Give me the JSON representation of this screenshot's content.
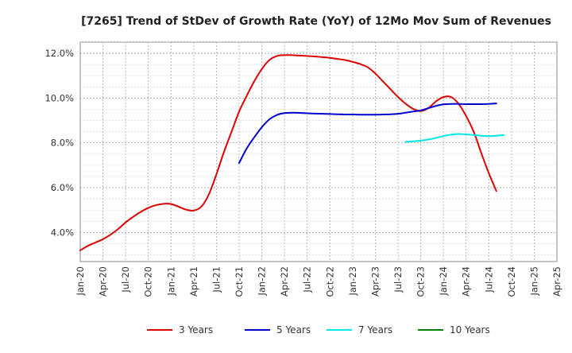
{
  "chart_data": {
    "type": "line",
    "title": "[7265]  Trend of StDev of Growth Rate (YoY) of 12Mo Mov Sum of Revenues",
    "xlabel": "",
    "ylabel": "",
    "x_tick_labels": [
      "Jan-20",
      "Apr-20",
      "Jul-20",
      "Oct-20",
      "Jan-21",
      "Apr-21",
      "Jul-21",
      "Oct-21",
      "Jan-22",
      "Apr-22",
      "Jul-22",
      "Oct-22",
      "Jan-23",
      "Apr-23",
      "Jul-23",
      "Oct-23",
      "Jan-24",
      "Apr-24",
      "Jul-24",
      "Oct-24",
      "Jan-25",
      "Apr-25"
    ],
    "y_tick_labels": [
      "4.0%",
      "6.0%",
      "8.0%",
      "10.0%",
      "12.0%"
    ],
    "y_tick_values": [
      4.0,
      6.0,
      8.0,
      10.0,
      12.0
    ],
    "ylim": [
      2.7,
      12.5
    ],
    "xlim_months": [
      0,
      63
    ],
    "grid": true,
    "legend_position": "bottom",
    "series": [
      {
        "name": "3 Years",
        "color": "#dd0000",
        "points": [
          [
            0,
            3.2
          ],
          [
            1,
            3.4
          ],
          [
            2,
            3.55
          ],
          [
            3,
            3.7
          ],
          [
            4,
            3.9
          ],
          [
            5,
            4.15
          ],
          [
            6,
            4.45
          ],
          [
            7,
            4.7
          ],
          [
            8,
            4.92
          ],
          [
            9,
            5.1
          ],
          [
            10,
            5.22
          ],
          [
            11,
            5.28
          ],
          [
            12,
            5.27
          ],
          [
            13,
            5.15
          ],
          [
            14,
            5.02
          ],
          [
            15,
            4.98
          ],
          [
            16,
            5.15
          ],
          [
            17,
            5.7
          ],
          [
            18,
            6.6
          ],
          [
            19,
            7.6
          ],
          [
            20,
            8.5
          ],
          [
            21,
            9.4
          ],
          [
            22,
            10.1
          ],
          [
            23,
            10.75
          ],
          [
            24,
            11.3
          ],
          [
            25,
            11.7
          ],
          [
            26,
            11.88
          ],
          [
            27,
            11.92
          ],
          [
            28,
            11.92
          ],
          [
            29,
            11.9
          ],
          [
            30,
            11.88
          ],
          [
            31,
            11.86
          ],
          [
            32,
            11.83
          ],
          [
            33,
            11.8
          ],
          [
            34,
            11.75
          ],
          [
            35,
            11.7
          ],
          [
            36,
            11.62
          ],
          [
            37,
            11.52
          ],
          [
            38,
            11.38
          ],
          [
            39,
            11.1
          ],
          [
            40,
            10.75
          ],
          [
            41,
            10.4
          ],
          [
            42,
            10.05
          ],
          [
            43,
            9.75
          ],
          [
            44,
            9.52
          ],
          [
            45,
            9.42
          ],
          [
            46,
            9.55
          ],
          [
            47,
            9.85
          ],
          [
            48,
            10.05
          ],
          [
            49,
            10.05
          ],
          [
            50,
            9.75
          ],
          [
            51,
            9.2
          ],
          [
            52,
            8.5
          ],
          [
            53,
            7.55
          ],
          [
            54,
            6.65
          ],
          [
            55,
            5.85
          ]
        ]
      },
      {
        "name": "5 Years",
        "color": "#0000cc",
        "points": [
          [
            21,
            7.1
          ],
          [
            22,
            7.75
          ],
          [
            23,
            8.25
          ],
          [
            24,
            8.7
          ],
          [
            25,
            9.05
          ],
          [
            26,
            9.25
          ],
          [
            27,
            9.33
          ],
          [
            28,
            9.35
          ],
          [
            29,
            9.34
          ],
          [
            30,
            9.32
          ],
          [
            31,
            9.31
          ],
          [
            32,
            9.3
          ],
          [
            33,
            9.29
          ],
          [
            34,
            9.28
          ],
          [
            35,
            9.27
          ],
          [
            36,
            9.27
          ],
          [
            37,
            9.26
          ],
          [
            38,
            9.26
          ],
          [
            39,
            9.26
          ],
          [
            40,
            9.27
          ],
          [
            41,
            9.28
          ],
          [
            42,
            9.3
          ],
          [
            43,
            9.35
          ],
          [
            44,
            9.4
          ],
          [
            45,
            9.45
          ],
          [
            46,
            9.55
          ],
          [
            47,
            9.65
          ],
          [
            48,
            9.72
          ],
          [
            49,
            9.74
          ],
          [
            50,
            9.74
          ],
          [
            51,
            9.73
          ],
          [
            52,
            9.73
          ],
          [
            53,
            9.73
          ],
          [
            54,
            9.74
          ],
          [
            55,
            9.76
          ]
        ]
      },
      {
        "name": "7 Years",
        "color": "#00e5e5",
        "points": [
          [
            43,
            8.05
          ],
          [
            44,
            8.07
          ],
          [
            45,
            8.1
          ],
          [
            46,
            8.15
          ],
          [
            47,
            8.22
          ],
          [
            48,
            8.3
          ],
          [
            49,
            8.37
          ],
          [
            50,
            8.4
          ],
          [
            51,
            8.38
          ],
          [
            52,
            8.35
          ],
          [
            53,
            8.32
          ],
          [
            54,
            8.3
          ],
          [
            55,
            8.32
          ],
          [
            56,
            8.35
          ]
        ]
      },
      {
        "name": "10 Years",
        "color": "#008000",
        "points": []
      }
    ]
  }
}
